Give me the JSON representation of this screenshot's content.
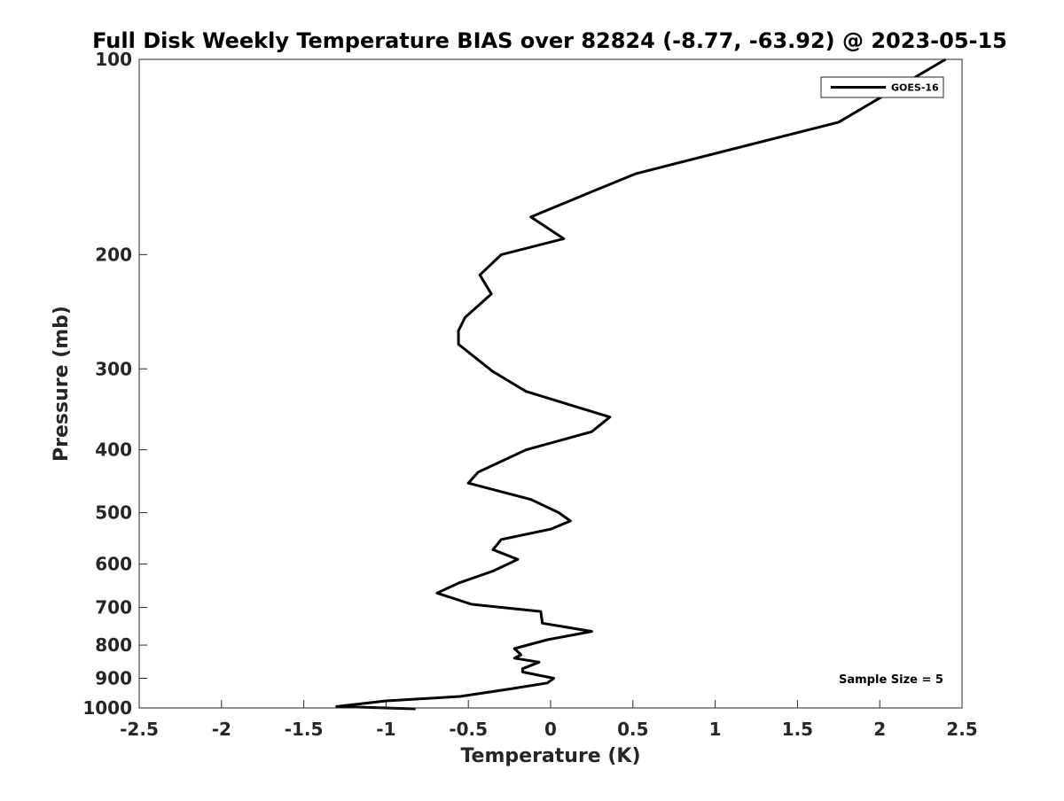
{
  "chart_data": {
    "type": "line",
    "title": "Full Disk Weekly Temperature BIAS over 82824 (-8.77, -63.92) @ 2023-05-15",
    "xlabel": "Temperature (K)",
    "ylabel": "Pressure (mb)",
    "xlim": [
      -2.5,
      2.5
    ],
    "ylim": [
      100,
      1000
    ],
    "y_scale": "log",
    "y_direction": "reversed",
    "grid": false,
    "legend_position": "top-right",
    "x_ticks": [
      -2.5,
      -2,
      -1.5,
      -1,
      -0.5,
      0,
      0.5,
      1,
      1.5,
      2,
      2.5
    ],
    "x_tick_labels": [
      "-2.5",
      "-2",
      "-1.5",
      "-1",
      "-0.5",
      "0",
      "0.5",
      "1",
      "1.5",
      "2",
      "2.5"
    ],
    "y_ticks": [
      100,
      200,
      300,
      400,
      500,
      600,
      700,
      800,
      900,
      1000
    ],
    "y_tick_labels": [
      "100",
      "200",
      "300",
      "400",
      "500",
      "600",
      "700",
      "800",
      "900",
      "1000"
    ],
    "series": [
      {
        "name": "GOES-16",
        "color": "#000000",
        "points": [
          [
            2.4,
            100
          ],
          [
            1.75,
            125
          ],
          [
            0.52,
            150
          ],
          [
            0.25,
            160
          ],
          [
            -0.12,
            175
          ],
          [
            0.08,
            189
          ],
          [
            -0.3,
            200
          ],
          [
            -0.43,
            215
          ],
          [
            -0.36,
            230
          ],
          [
            -0.52,
            250
          ],
          [
            -0.56,
            262
          ],
          [
            -0.56,
            275
          ],
          [
            -0.35,
            303
          ],
          [
            -0.15,
            325
          ],
          [
            0.36,
            356
          ],
          [
            0.25,
            375
          ],
          [
            -0.15,
            400
          ],
          [
            -0.44,
            433
          ],
          [
            -0.5,
            450
          ],
          [
            -0.12,
            477
          ],
          [
            0.05,
            500
          ],
          [
            0.12,
            515
          ],
          [
            0.0,
            530
          ],
          [
            -0.3,
            550
          ],
          [
            -0.35,
            570
          ],
          [
            -0.2,
            590
          ],
          [
            -0.35,
            615
          ],
          [
            -0.56,
            642
          ],
          [
            -0.69,
            665
          ],
          [
            -0.48,
            692
          ],
          [
            -0.06,
            710
          ],
          [
            -0.05,
            740
          ],
          [
            0.25,
            762
          ],
          [
            -0.02,
            785
          ],
          [
            -0.22,
            810
          ],
          [
            -0.18,
            828
          ],
          [
            -0.22,
            838
          ],
          [
            -0.07,
            850
          ],
          [
            -0.17,
            870
          ],
          [
            -0.17,
            880
          ],
          [
            0.02,
            900
          ],
          [
            -0.02,
            915
          ],
          [
            -0.25,
            935
          ],
          [
            -0.55,
            960
          ],
          [
            -1.0,
            975
          ],
          [
            -1.3,
            995
          ],
          [
            -1.18,
            997
          ],
          [
            -1.0,
            1000
          ],
          [
            -0.82,
            1003
          ]
        ]
      }
    ],
    "annotations": [
      {
        "text": "Sample Size = 5",
        "position": "bottom-right"
      }
    ]
  }
}
